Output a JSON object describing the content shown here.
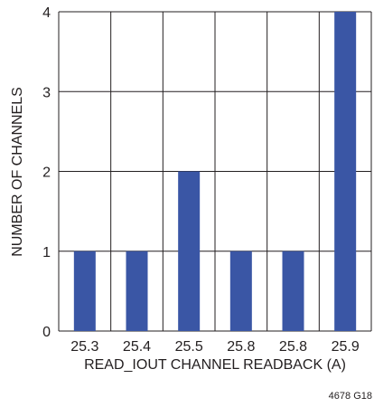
{
  "chart_data": {
    "type": "bar",
    "categories": [
      "25.3",
      "25.4",
      "25.5",
      "25.8",
      "25.8",
      "25.9"
    ],
    "values": [
      1,
      1,
      2,
      1,
      1,
      4
    ],
    "title": "",
    "xlabel": "READ_IOUT CHANNEL READBACK (A)",
    "ylabel": "NUMBER OF CHANNELS",
    "ylim": [
      0,
      4
    ],
    "yticks": [
      "0",
      "1",
      "2",
      "3",
      "4"
    ],
    "grid": true,
    "legend": "none",
    "bar_color": "#3a56a5",
    "grid_color": "#231f20"
  },
  "figure_id": "4678 G18"
}
